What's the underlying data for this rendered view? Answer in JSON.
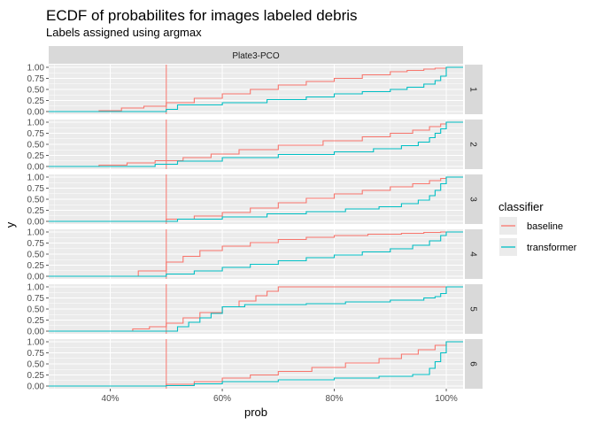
{
  "chart_data": {
    "type": "line",
    "title": "ECDF of probabilites for images labeled debris",
    "subtitle": "Labels assigned using argmax",
    "xlabel": "prob",
    "ylabel": "y",
    "xlim": [
      0.29,
      1.03
    ],
    "ylim": [
      0,
      1
    ],
    "x_ticks": [
      0.4,
      0.6,
      0.8,
      1.0
    ],
    "x_tick_labels": [
      "40%",
      "60%",
      "80%",
      "100%"
    ],
    "y_ticks": [
      0,
      0.25,
      0.5,
      0.75,
      1.0
    ],
    "y_tick_labels": [
      "0.00",
      "0.25",
      "0.50",
      "0.75",
      "1.00"
    ],
    "facet_column": "Plate3-PCO",
    "vline": {
      "x": 0.5,
      "color": "#F8766D"
    },
    "legend": {
      "title": "classifier",
      "position": "right",
      "entries": [
        "baseline",
        "transformer"
      ]
    },
    "colors": {
      "baseline": "#F8766D",
      "transformer": "#00BFC4"
    },
    "facets": [
      {
        "label": "1",
        "series": [
          {
            "name": "baseline",
            "x": [
              0.29,
              0.35,
              0.38,
              0.42,
              0.46,
              0.5,
              0.55,
              0.6,
              0.65,
              0.7,
              0.75,
              0.8,
              0.85,
              0.9,
              0.93,
              0.96,
              0.98,
              1.0,
              1.03
            ],
            "y": [
              0,
              0,
              0.02,
              0.08,
              0.12,
              0.2,
              0.3,
              0.4,
              0.5,
              0.6,
              0.68,
              0.75,
              0.83,
              0.9,
              0.93,
              0.96,
              0.98,
              1.0,
              1.0
            ]
          },
          {
            "name": "transformer",
            "x": [
              0.29,
              0.45,
              0.5,
              0.52,
              0.6,
              0.68,
              0.75,
              0.8,
              0.85,
              0.9,
              0.93,
              0.96,
              0.98,
              0.99,
              1.0,
              1.03
            ],
            "y": [
              0,
              0,
              0.05,
              0.15,
              0.2,
              0.27,
              0.33,
              0.4,
              0.45,
              0.5,
              0.55,
              0.62,
              0.7,
              0.8,
              1.0,
              1.0
            ]
          }
        ]
      },
      {
        "label": "2",
        "series": [
          {
            "name": "baseline",
            "x": [
              0.29,
              0.33,
              0.38,
              0.43,
              0.48,
              0.53,
              0.58,
              0.63,
              0.7,
              0.78,
              0.85,
              0.9,
              0.94,
              0.97,
              0.99,
              1.0,
              1.03
            ],
            "y": [
              0,
              0,
              0.03,
              0.08,
              0.13,
              0.2,
              0.28,
              0.38,
              0.48,
              0.58,
              0.67,
              0.75,
              0.82,
              0.9,
              0.96,
              1.0,
              1.0
            ]
          },
          {
            "name": "transformer",
            "x": [
              0.29,
              0.4,
              0.48,
              0.52,
              0.6,
              0.7,
              0.8,
              0.87,
              0.92,
              0.95,
              0.97,
              0.98,
              0.99,
              1.0,
              1.03
            ],
            "y": [
              0,
              0,
              0.05,
              0.12,
              0.2,
              0.27,
              0.33,
              0.4,
              0.47,
              0.55,
              0.65,
              0.75,
              0.85,
              1.0,
              1.0
            ]
          }
        ]
      },
      {
        "label": "3",
        "series": [
          {
            "name": "baseline",
            "x": [
              0.29,
              0.45,
              0.5,
              0.55,
              0.6,
              0.65,
              0.7,
              0.75,
              0.8,
              0.85,
              0.9,
              0.94,
              0.97,
              0.99,
              1.0,
              1.03
            ],
            "y": [
              0,
              0,
              0.05,
              0.12,
              0.2,
              0.3,
              0.42,
              0.52,
              0.62,
              0.7,
              0.78,
              0.85,
              0.92,
              0.97,
              1.0,
              1.0
            ]
          },
          {
            "name": "transformer",
            "x": [
              0.29,
              0.45,
              0.52,
              0.6,
              0.68,
              0.75,
              0.82,
              0.88,
              0.92,
              0.95,
              0.97,
              0.98,
              0.99,
              1.0,
              1.03
            ],
            "y": [
              0,
              0,
              0.05,
              0.1,
              0.17,
              0.22,
              0.28,
              0.33,
              0.4,
              0.48,
              0.58,
              0.7,
              0.85,
              1.0,
              1.0
            ]
          }
        ]
      },
      {
        "label": "4",
        "series": [
          {
            "name": "baseline",
            "x": [
              0.29,
              0.4,
              0.45,
              0.5,
              0.53,
              0.56,
              0.6,
              0.65,
              0.7,
              0.75,
              0.8,
              0.86,
              0.92,
              0.96,
              0.99,
              1.03
            ],
            "y": [
              0,
              0,
              0.12,
              0.32,
              0.45,
              0.58,
              0.68,
              0.76,
              0.83,
              0.88,
              0.92,
              0.95,
              0.97,
              0.99,
              1.0,
              1.0
            ]
          },
          {
            "name": "transformer",
            "x": [
              0.29,
              0.45,
              0.5,
              0.55,
              0.6,
              0.65,
              0.7,
              0.75,
              0.8,
              0.85,
              0.9,
              0.94,
              0.97,
              0.99,
              1.0,
              1.03
            ],
            "y": [
              0,
              0,
              0.05,
              0.12,
              0.2,
              0.27,
              0.35,
              0.42,
              0.48,
              0.55,
              0.62,
              0.7,
              0.8,
              0.92,
              1.0,
              1.0
            ]
          }
        ]
      },
      {
        "label": "5",
        "series": [
          {
            "name": "baseline",
            "x": [
              0.29,
              0.41,
              0.44,
              0.47,
              0.5,
              0.53,
              0.56,
              0.6,
              0.63,
              0.66,
              0.68,
              0.7,
              0.75,
              0.85,
              0.95,
              1.03
            ],
            "y": [
              0,
              0,
              0.05,
              0.1,
              0.18,
              0.3,
              0.42,
              0.55,
              0.68,
              0.8,
              0.9,
              1.0,
              1.0,
              1.0,
              1.0,
              1.0
            ]
          },
          {
            "name": "transformer",
            "x": [
              0.29,
              0.5,
              0.52,
              0.54,
              0.56,
              0.58,
              0.6,
              0.64,
              0.75,
              0.82,
              0.9,
              0.96,
              0.98,
              0.99,
              1.0,
              1.03
            ],
            "y": [
              0,
              0,
              0.1,
              0.2,
              0.3,
              0.4,
              0.55,
              0.6,
              0.62,
              0.66,
              0.7,
              0.75,
              0.78,
              0.85,
              1.0,
              1.0
            ]
          }
        ]
      },
      {
        "label": "6",
        "series": [
          {
            "name": "baseline",
            "x": [
              0.29,
              0.45,
              0.5,
              0.55,
              0.6,
              0.65,
              0.7,
              0.76,
              0.82,
              0.88,
              0.92,
              0.95,
              0.98,
              1.0,
              1.03
            ],
            "y": [
              0,
              0,
              0.04,
              0.1,
              0.18,
              0.25,
              0.33,
              0.42,
              0.52,
              0.62,
              0.72,
              0.82,
              0.92,
              1.0,
              1.0
            ]
          },
          {
            "name": "transformer",
            "x": [
              0.29,
              0.5,
              0.55,
              0.6,
              0.7,
              0.8,
              0.88,
              0.94,
              0.97,
              0.98,
              0.99,
              1.0,
              1.03
            ],
            "y": [
              0,
              0.01,
              0.05,
              0.1,
              0.14,
              0.18,
              0.22,
              0.26,
              0.4,
              0.55,
              0.75,
              1.0,
              1.0
            ]
          }
        ]
      }
    ]
  }
}
